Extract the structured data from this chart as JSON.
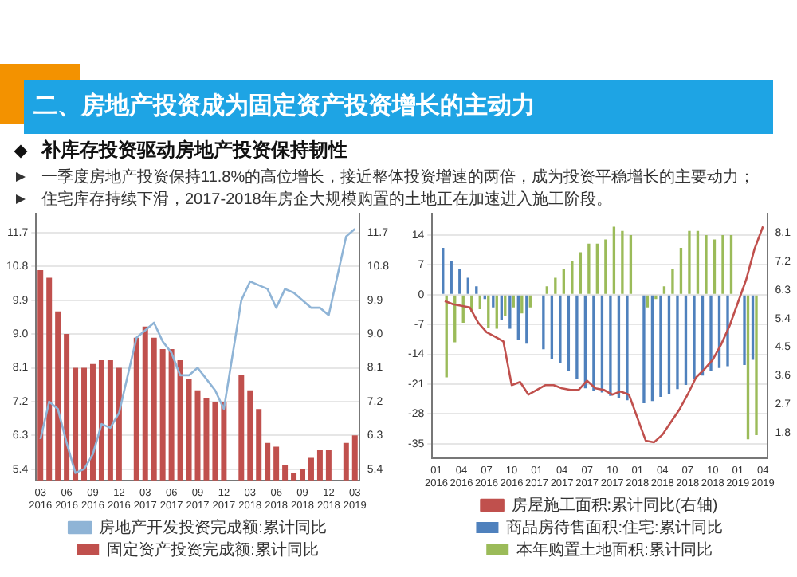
{
  "chart_data": [
    {
      "type": "other",
      "title": "二、房地产投资成为固定资产投资增长的主动力",
      "subtitle": "补库存投资驱动房地产投资保持韧性",
      "annotations": [
        "一季度房地产投资保持11.8%的高位增长，接近整体投资增速的两倍，成为投资平稳增长的主要动力；",
        "住宅库存持续下滑，2017-2018年房企大规模购置的土地正在加速进入施工阶段。"
      ]
    },
    {
      "type": "bar",
      "categories": [
        "03 2016",
        null,
        null,
        "06 2016",
        null,
        null,
        "09 2016",
        null,
        null,
        "12 2016",
        null,
        null,
        "03 2017",
        null,
        null,
        "06 2017",
        null,
        null,
        "09 2017",
        null,
        null,
        "12 2017",
        null,
        null,
        "03 2018",
        null,
        null,
        "06 2018",
        null,
        null,
        "09 2018",
        null,
        null,
        "12 2018",
        null,
        null,
        "03 2019"
      ],
      "series": [
        {
          "name": "固定资产投资完成额:累计同比",
          "type": "bar",
          "color": "#c0504d",
          "values": [
            10.7,
            10.5,
            9.6,
            9.0,
            8.1,
            8.1,
            8.2,
            8.3,
            8.3,
            8.1,
            null,
            8.9,
            9.2,
            8.9,
            8.6,
            8.6,
            8.3,
            7.8,
            7.5,
            7.3,
            7.2,
            7.2,
            null,
            7.9,
            7.5,
            7.0,
            6.1,
            6.0,
            5.5,
            5.3,
            5.4,
            5.7,
            5.9,
            5.9,
            null,
            6.1,
            6.3
          ]
        },
        {
          "name": "房地产开发投资完成额:累计同比",
          "type": "line",
          "axis": "y2",
          "color": "#8fb4d6",
          "values": [
            6.2,
            7.2,
            7.0,
            6.1,
            5.3,
            5.4,
            5.8,
            6.6,
            6.5,
            6.9,
            null,
            8.9,
            9.1,
            9.3,
            8.8,
            8.5,
            7.9,
            7.9,
            8.1,
            7.8,
            7.5,
            7.0,
            null,
            9.9,
            10.4,
            10.3,
            10.2,
            9.7,
            10.2,
            10.1,
            9.9,
            9.7,
            9.7,
            9.5,
            null,
            11.6,
            11.8
          ]
        }
      ],
      "ylim": [
        5.1,
        12.2
      ],
      "yticks": [
        5.4,
        6.3,
        7.2,
        8.1,
        {
          "value": 9,
          "label": "9.0"
        },
        9.9,
        10.8,
        11.7
      ],
      "y2lim": [
        5.1,
        12.2
      ],
      "y2ticks": [
        5.4,
        6.3,
        7.2,
        8.1,
        {
          "value": 9,
          "label": "9.0"
        },
        9.9,
        10.8,
        11.7
      ],
      "grid": "y",
      "legend": "bottom",
      "marker": "none",
      "line_style": "solid"
    },
    {
      "type": "bar",
      "categories": [
        "01 2016",
        null,
        null,
        "04 2016",
        null,
        null,
        "07 2016",
        null,
        null,
        "10 2016",
        null,
        null,
        "01 2017",
        null,
        null,
        "04 2017",
        null,
        null,
        "07 2017",
        null,
        null,
        "10 2017",
        null,
        null,
        "01 2018",
        null,
        null,
        "04 2018",
        null,
        null,
        "07 2018",
        null,
        null,
        "10 2018",
        null,
        null,
        "01 2019",
        null,
        null,
        "04 2019"
      ],
      "series": [
        {
          "name": "商品房待售面积:住宅:累计同比",
          "type": "bar",
          "color": "#4f81bd",
          "values": [
            null,
            11,
            8,
            6,
            4,
            2,
            -1,
            -3,
            -6,
            -8,
            -10.7,
            -11.5,
            null,
            -12.8,
            -15,
            -16,
            -18,
            -19.7,
            -22,
            -22.6,
            -23,
            -23.8,
            -24.4,
            -24.8,
            null,
            -25.5,
            -25,
            -24,
            -23.4,
            -22.2,
            -21.2,
            -19.7,
            -19,
            -18,
            -17.2,
            -16.8,
            null,
            -16.5,
            -15.3,
            null
          ]
        },
        {
          "name": "房屋施工面积:累计同比(右轴)",
          "type": "line",
          "axis": "y2",
          "color": "#c0504d",
          "values": [
            null,
            5.95,
            5.85,
            5.8,
            5.75,
            5.27,
            4.97,
            4.83,
            4.68,
            3.3,
            3.4,
            3.0,
            null,
            3.3,
            3.3,
            3.2,
            3.15,
            3.15,
            3.44,
            3.2,
            3.15,
            3.0,
            3.1,
            3.0,
            null,
            1.55,
            1.5,
            1.74,
            2.13,
            2.52,
            3.0,
            3.54,
            3.8,
            4.1,
            4.58,
            5.16,
            null,
            6.63,
            7.6,
            8.3
          ]
        },
        {
          "name": "本年购置土地面积:累计同比",
          "type": "bar",
          "color": "#9bbb59",
          "values": [
            null,
            -19.4,
            -11.2,
            -6.6,
            -4,
            -3.4,
            -7.7,
            -8,
            -5,
            -3,
            -4.4,
            -3,
            null,
            2,
            4,
            6,
            8,
            10,
            12,
            12,
            13,
            16,
            15,
            14,
            null,
            -3,
            -1,
            2,
            6,
            11,
            15,
            15,
            14,
            13,
            14,
            14,
            null,
            -34,
            -33,
            null
          ]
        }
      ],
      "ylim": [
        -38.4,
        19
      ],
      "yticks": [
        -35,
        -28,
        -21,
        -14,
        -7,
        0,
        7,
        14
      ],
      "y2lim": [
        1.0,
        8.7
      ],
      "y2ticks": [
        1.8,
        2.7,
        3.6,
        4.5,
        5.4,
        6.3,
        7.2,
        8.1
      ],
      "grid": "y",
      "legend": "bottom",
      "marker": "none",
      "line_style": "solid"
    }
  ]
}
